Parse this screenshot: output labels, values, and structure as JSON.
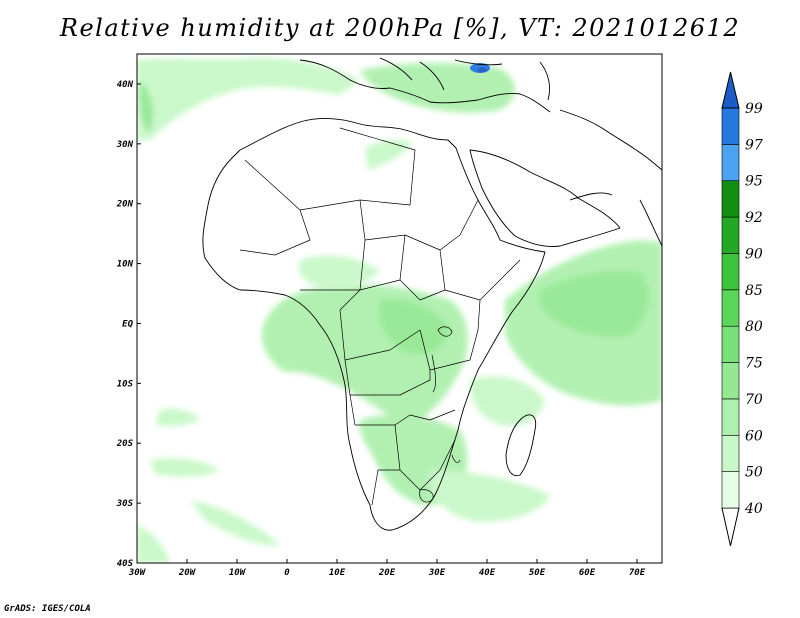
{
  "title": "Relative humidity at 200hPa [%], VT: 2021012612",
  "credit": "GrADS: IGES/COLA",
  "map": {
    "lon_range": [
      -30,
      75
    ],
    "lat_range": [
      -40,
      45
    ],
    "lon_ticks": [
      {
        "value": -30,
        "label": "30W"
      },
      {
        "value": -20,
        "label": "20W"
      },
      {
        "value": -10,
        "label": "10W"
      },
      {
        "value": 0,
        "label": "0"
      },
      {
        "value": 10,
        "label": "10E"
      },
      {
        "value": 20,
        "label": "20E"
      },
      {
        "value": 30,
        "label": "30E"
      },
      {
        "value": 40,
        "label": "40E"
      },
      {
        "value": 50,
        "label": "50E"
      },
      {
        "value": 60,
        "label": "60E"
      },
      {
        "value": 70,
        "label": "70E"
      }
    ],
    "lat_ticks": [
      {
        "value": 40,
        "label": "40N"
      },
      {
        "value": 30,
        "label": "30N"
      },
      {
        "value": 20,
        "label": "20N"
      },
      {
        "value": 10,
        "label": "10N"
      },
      {
        "value": 0,
        "label": "EQ"
      },
      {
        "value": -10,
        "label": "10S"
      },
      {
        "value": -20,
        "label": "20S"
      },
      {
        "value": -30,
        "label": "30S"
      },
      {
        "value": -40,
        "label": "40S"
      }
    ]
  },
  "colorbar": {
    "levels": [
      "40",
      "50",
      "60",
      "70",
      "75",
      "80",
      "85",
      "90",
      "92",
      "95",
      "97",
      "99"
    ],
    "colors": [
      "#e6fde6",
      "#c8f8c8",
      "#aef0ae",
      "#94e894",
      "#78e078",
      "#5ad65a",
      "#3cc43c",
      "#22a822",
      "#128f12",
      "#4aa3f0",
      "#2479e0",
      "#1a5cc8"
    ],
    "under_color": "#ffffff"
  },
  "humidity_regions": [
    {
      "name": "equatorial-africa",
      "level": "60",
      "color": "#aef0ae"
    },
    {
      "name": "southern-africa",
      "level": "60",
      "color": "#aef0ae"
    },
    {
      "name": "indian-ocean-band",
      "level": "60",
      "color": "#aef0ae"
    },
    {
      "name": "north-atlantic",
      "level": "50",
      "color": "#c8f8c8"
    },
    {
      "name": "turkey-high",
      "level": "97",
      "color": "#2479e0"
    }
  ]
}
